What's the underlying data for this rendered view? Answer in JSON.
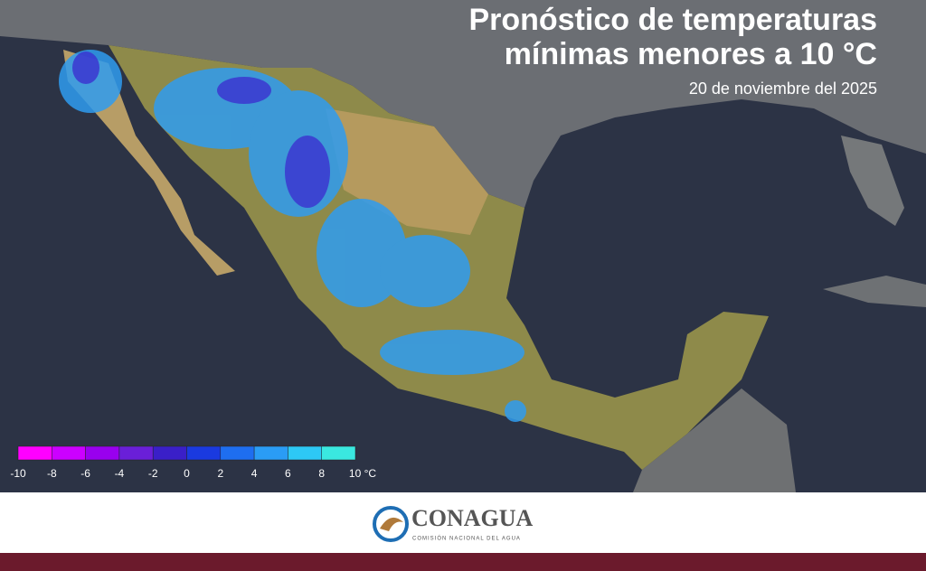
{
  "header": {
    "title_line1": "Pronóstico de temperaturas",
    "title_line2": "mínimas menores a 10 °C",
    "date": "20 de noviembre del 2025"
  },
  "legend": {
    "colors": [
      "#ff00ff",
      "#cc00ff",
      "#9900ee",
      "#6a1fd8",
      "#3a1fc8",
      "#1a3ae0",
      "#1e6ef0",
      "#2a9cf5",
      "#2dc8f5",
      "#3ae8e0"
    ],
    "labels": [
      "-10",
      "-8",
      "-6",
      "-4",
      "-2",
      "0",
      "2",
      "4",
      "6",
      "8",
      "10 °C"
    ]
  },
  "footer": {
    "brand": "CONAGUA",
    "brand_subtitle": "COMISIÓN NACIONAL DEL AGUA"
  }
}
